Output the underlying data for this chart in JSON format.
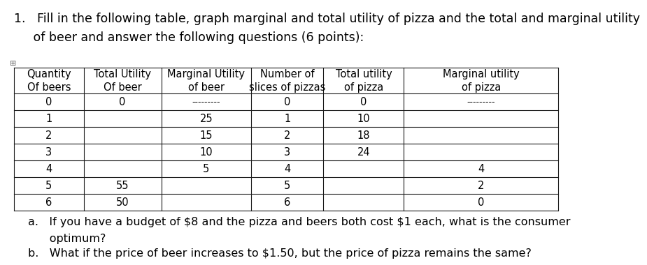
{
  "title_line1": "1.   Fill in the following table, graph marginal and total utility of pizza and the total and marginal utility",
  "title_line2": "     of beer and answer the following questions (6 points):",
  "col_headers": [
    [
      "Quantity",
      "Of beers"
    ],
    [
      "Total Utility",
      "Of beer"
    ],
    [
      "Marginal Utility",
      "of beer"
    ],
    [
      "Number of",
      "slices of pizzas"
    ],
    [
      "Total utility",
      "of pizza"
    ],
    [
      "Marginal utility",
      "of pizza"
    ]
  ],
  "rows": [
    [
      "0",
      "0",
      "---------",
      "0",
      "0",
      "---------"
    ],
    [
      "1",
      "",
      "25",
      "1",
      "10",
      ""
    ],
    [
      "2",
      "",
      "15",
      "2",
      "18",
      ""
    ],
    [
      "3",
      "",
      "10",
      "3",
      "24",
      ""
    ],
    [
      "4",
      "",
      "5",
      "4",
      "",
      "4"
    ],
    [
      "5",
      "55",
      "",
      "5",
      "",
      "2"
    ],
    [
      "6",
      "50",
      "",
      "6",
      "",
      "0"
    ]
  ],
  "footnote_a": "a.   If you have a budget of $8 and the pizza and beers both cost $1 each, what is the consumer",
  "footnote_a2": "      optimum?",
  "footnote_b": "b.   What if the price of beer increases to $1.50, but the price of pizza remains the same?",
  "bg_color": "#ffffff",
  "text_color": "#000000",
  "table_line_color": "#1a1a1a",
  "font_size_title": 12.5,
  "font_size_table": 10.5,
  "font_size_footnote": 11.5
}
